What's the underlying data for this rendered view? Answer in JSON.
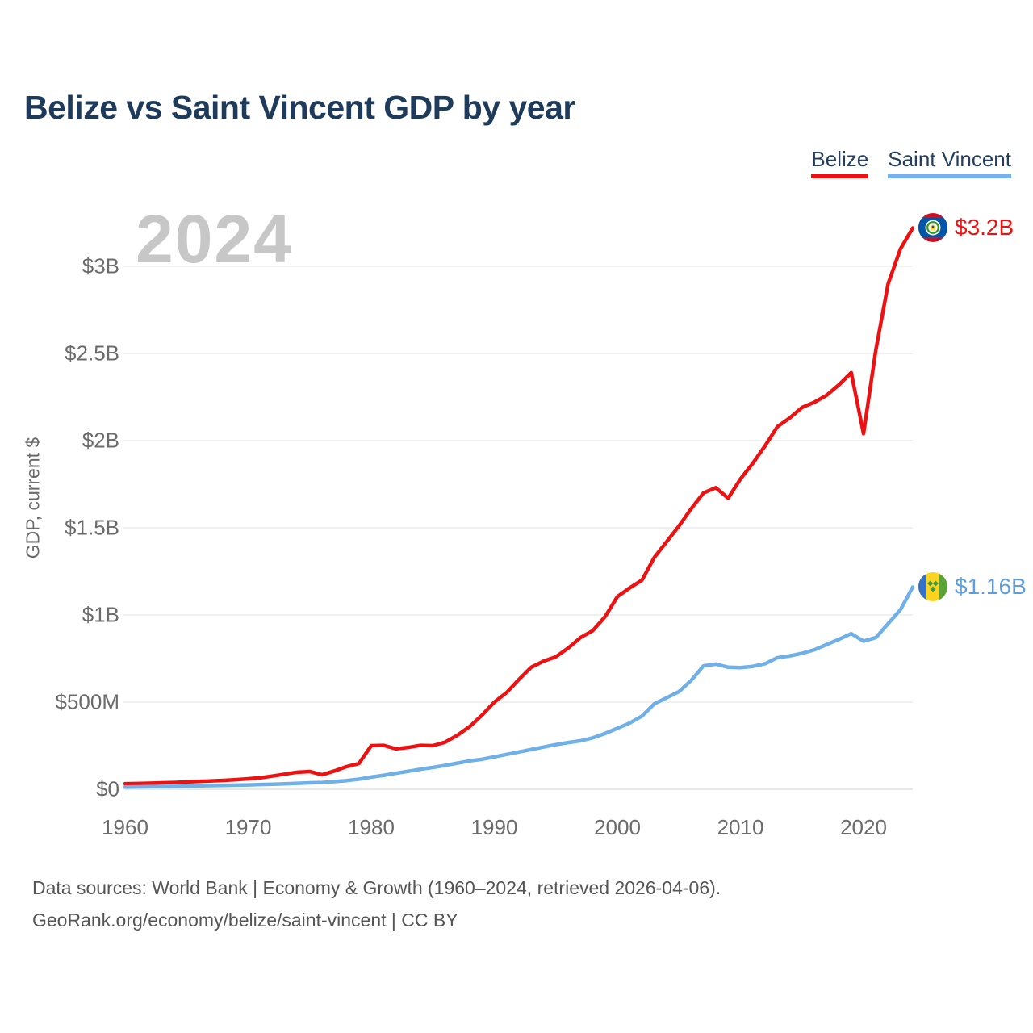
{
  "title": "Belize vs Saint Vincent GDP by year",
  "watermark": "2024",
  "legend": [
    {
      "label": "Belize",
      "color": "#ee1111"
    },
    {
      "label": "Saint Vincent",
      "color": "#74b3ea"
    }
  ],
  "footer": {
    "line1": "Data sources: World Bank | Economy & Growth (1960–2024, retrieved 2026-04-06).",
    "line2": "GeoRank.org/economy/belize/saint-vincent | CC BY"
  },
  "chart_data": {
    "type": "line",
    "title": "Belize vs Saint Vincent GDP by year",
    "xlabel": "",
    "ylabel": "GDP, current $",
    "grid": "horizontal-only",
    "legend_position": "top-right",
    "x_ticks": [
      1960,
      1970,
      1980,
      1990,
      2000,
      2010,
      2020
    ],
    "y_ticks": [
      {
        "label": "$0",
        "value_musd": 0
      },
      {
        "label": "$500M",
        "value_musd": 500
      },
      {
        "label": "$1B",
        "value_musd": 1000
      },
      {
        "label": "$1.5B",
        "value_musd": 1500
      },
      {
        "label": "$2B",
        "value_musd": 2000
      },
      {
        "label": "$2.5B",
        "value_musd": 2500
      },
      {
        "label": "$3B",
        "value_musd": 3000
      }
    ],
    "ylim_musd": [
      0,
      3350
    ],
    "years": [
      1960,
      1961,
      1962,
      1963,
      1964,
      1965,
      1966,
      1967,
      1968,
      1969,
      1970,
      1971,
      1972,
      1973,
      1974,
      1975,
      1976,
      1977,
      1978,
      1979,
      1980,
      1981,
      1982,
      1983,
      1984,
      1985,
      1986,
      1987,
      1988,
      1989,
      1990,
      1991,
      1992,
      1993,
      1994,
      1995,
      1996,
      1997,
      1998,
      1999,
      2000,
      2001,
      2002,
      2003,
      2004,
      2005,
      2006,
      2007,
      2008,
      2009,
      2010,
      2011,
      2012,
      2013,
      2014,
      2015,
      2016,
      2017,
      2018,
      2019,
      2020,
      2021,
      2022,
      2023,
      2024
    ],
    "series": [
      {
        "name": "Belize",
        "color": "#ee1111",
        "label_color": "#ee1111",
        "end_label": "$3.2B",
        "flag": "belize",
        "values_musd": [
          32,
          33,
          35,
          37,
          39,
          42,
          45,
          48,
          51,
          55,
          60,
          66,
          76,
          87,
          98,
          102,
          83,
          105,
          130,
          148,
          250,
          252,
          232,
          240,
          252,
          250,
          270,
          310,
          360,
          425,
          500,
          555,
          630,
          700,
          735,
          760,
          810,
          870,
          910,
          990,
          1105,
          1155,
          1200,
          1330,
          1420,
          1510,
          1610,
          1700,
          1730,
          1670,
          1780,
          1870,
          1970,
          2080,
          2130,
          2190,
          2220,
          2260,
          2320,
          2390,
          2040,
          2520,
          2900,
          3100,
          3220
        ]
      },
      {
        "name": "Saint Vincent",
        "color": "#6fb0e8",
        "label_color": "#5c9ee0",
        "end_label": "$1.16B",
        "flag": "saint-vincent",
        "values_musd": [
          13,
          14,
          15,
          16,
          17,
          18,
          19,
          21,
          22,
          24,
          25,
          27,
          29,
          31,
          34,
          37,
          39,
          44,
          50,
          58,
          70,
          80,
          92,
          103,
          115,
          125,
          137,
          150,
          163,
          172,
          186,
          200,
          214,
          228,
          242,
          256,
          268,
          278,
          295,
          320,
          350,
          380,
          420,
          490,
          525,
          560,
          625,
          708,
          718,
          700,
          698,
          705,
          720,
          755,
          765,
          780,
          800,
          830,
          860,
          893,
          850,
          870,
          950,
          1030,
          1160
        ]
      }
    ]
  }
}
